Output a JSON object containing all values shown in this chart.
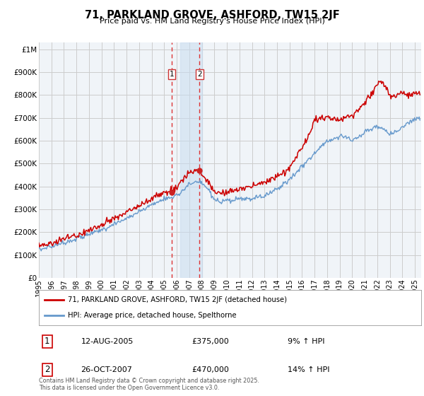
{
  "title": "71, PARKLAND GROVE, ASHFORD, TW15 2JF",
  "subtitle": "Price paid vs. HM Land Registry's House Price Index (HPI)",
  "ytick_values": [
    0,
    100000,
    200000,
    300000,
    400000,
    500000,
    600000,
    700000,
    800000,
    900000,
    1000000
  ],
  "ylim": [
    0,
    1030000
  ],
  "xlim_start": 1995.0,
  "xlim_end": 2025.5,
  "sale1_x": 2005.61,
  "sale1_y": 375000,
  "sale2_x": 2007.82,
  "sale2_y": 470000,
  "shading_x1": 2006.3,
  "shading_x2": 2008.05,
  "red_line_color": "#cc0000",
  "blue_line_color": "#6699cc",
  "background_color": "#ffffff",
  "plot_bg_color": "#ffffff",
  "grid_color": "#cccccc",
  "legend1_label": "71, PARKLAND GROVE, ASHFORD, TW15 2JF (detached house)",
  "legend2_label": "HPI: Average price, detached house, Spelthorne",
  "sale1_date": "12-AUG-2005",
  "sale1_price": "£375,000",
  "sale1_pct": "9% ↑ HPI",
  "sale2_date": "26-OCT-2007",
  "sale2_price": "£470,000",
  "sale2_pct": "14% ↑ HPI",
  "footnote": "Contains HM Land Registry data © Crown copyright and database right 2025.\nThis data is licensed under the Open Government Licence v3.0.",
  "xtick_years": [
    1995,
    1996,
    1997,
    1998,
    1999,
    2000,
    2001,
    2002,
    2003,
    2004,
    2005,
    2006,
    2007,
    2008,
    2009,
    2010,
    2011,
    2012,
    2013,
    2014,
    2015,
    2016,
    2017,
    2018,
    2019,
    2020,
    2021,
    2022,
    2023,
    2024,
    2025
  ]
}
